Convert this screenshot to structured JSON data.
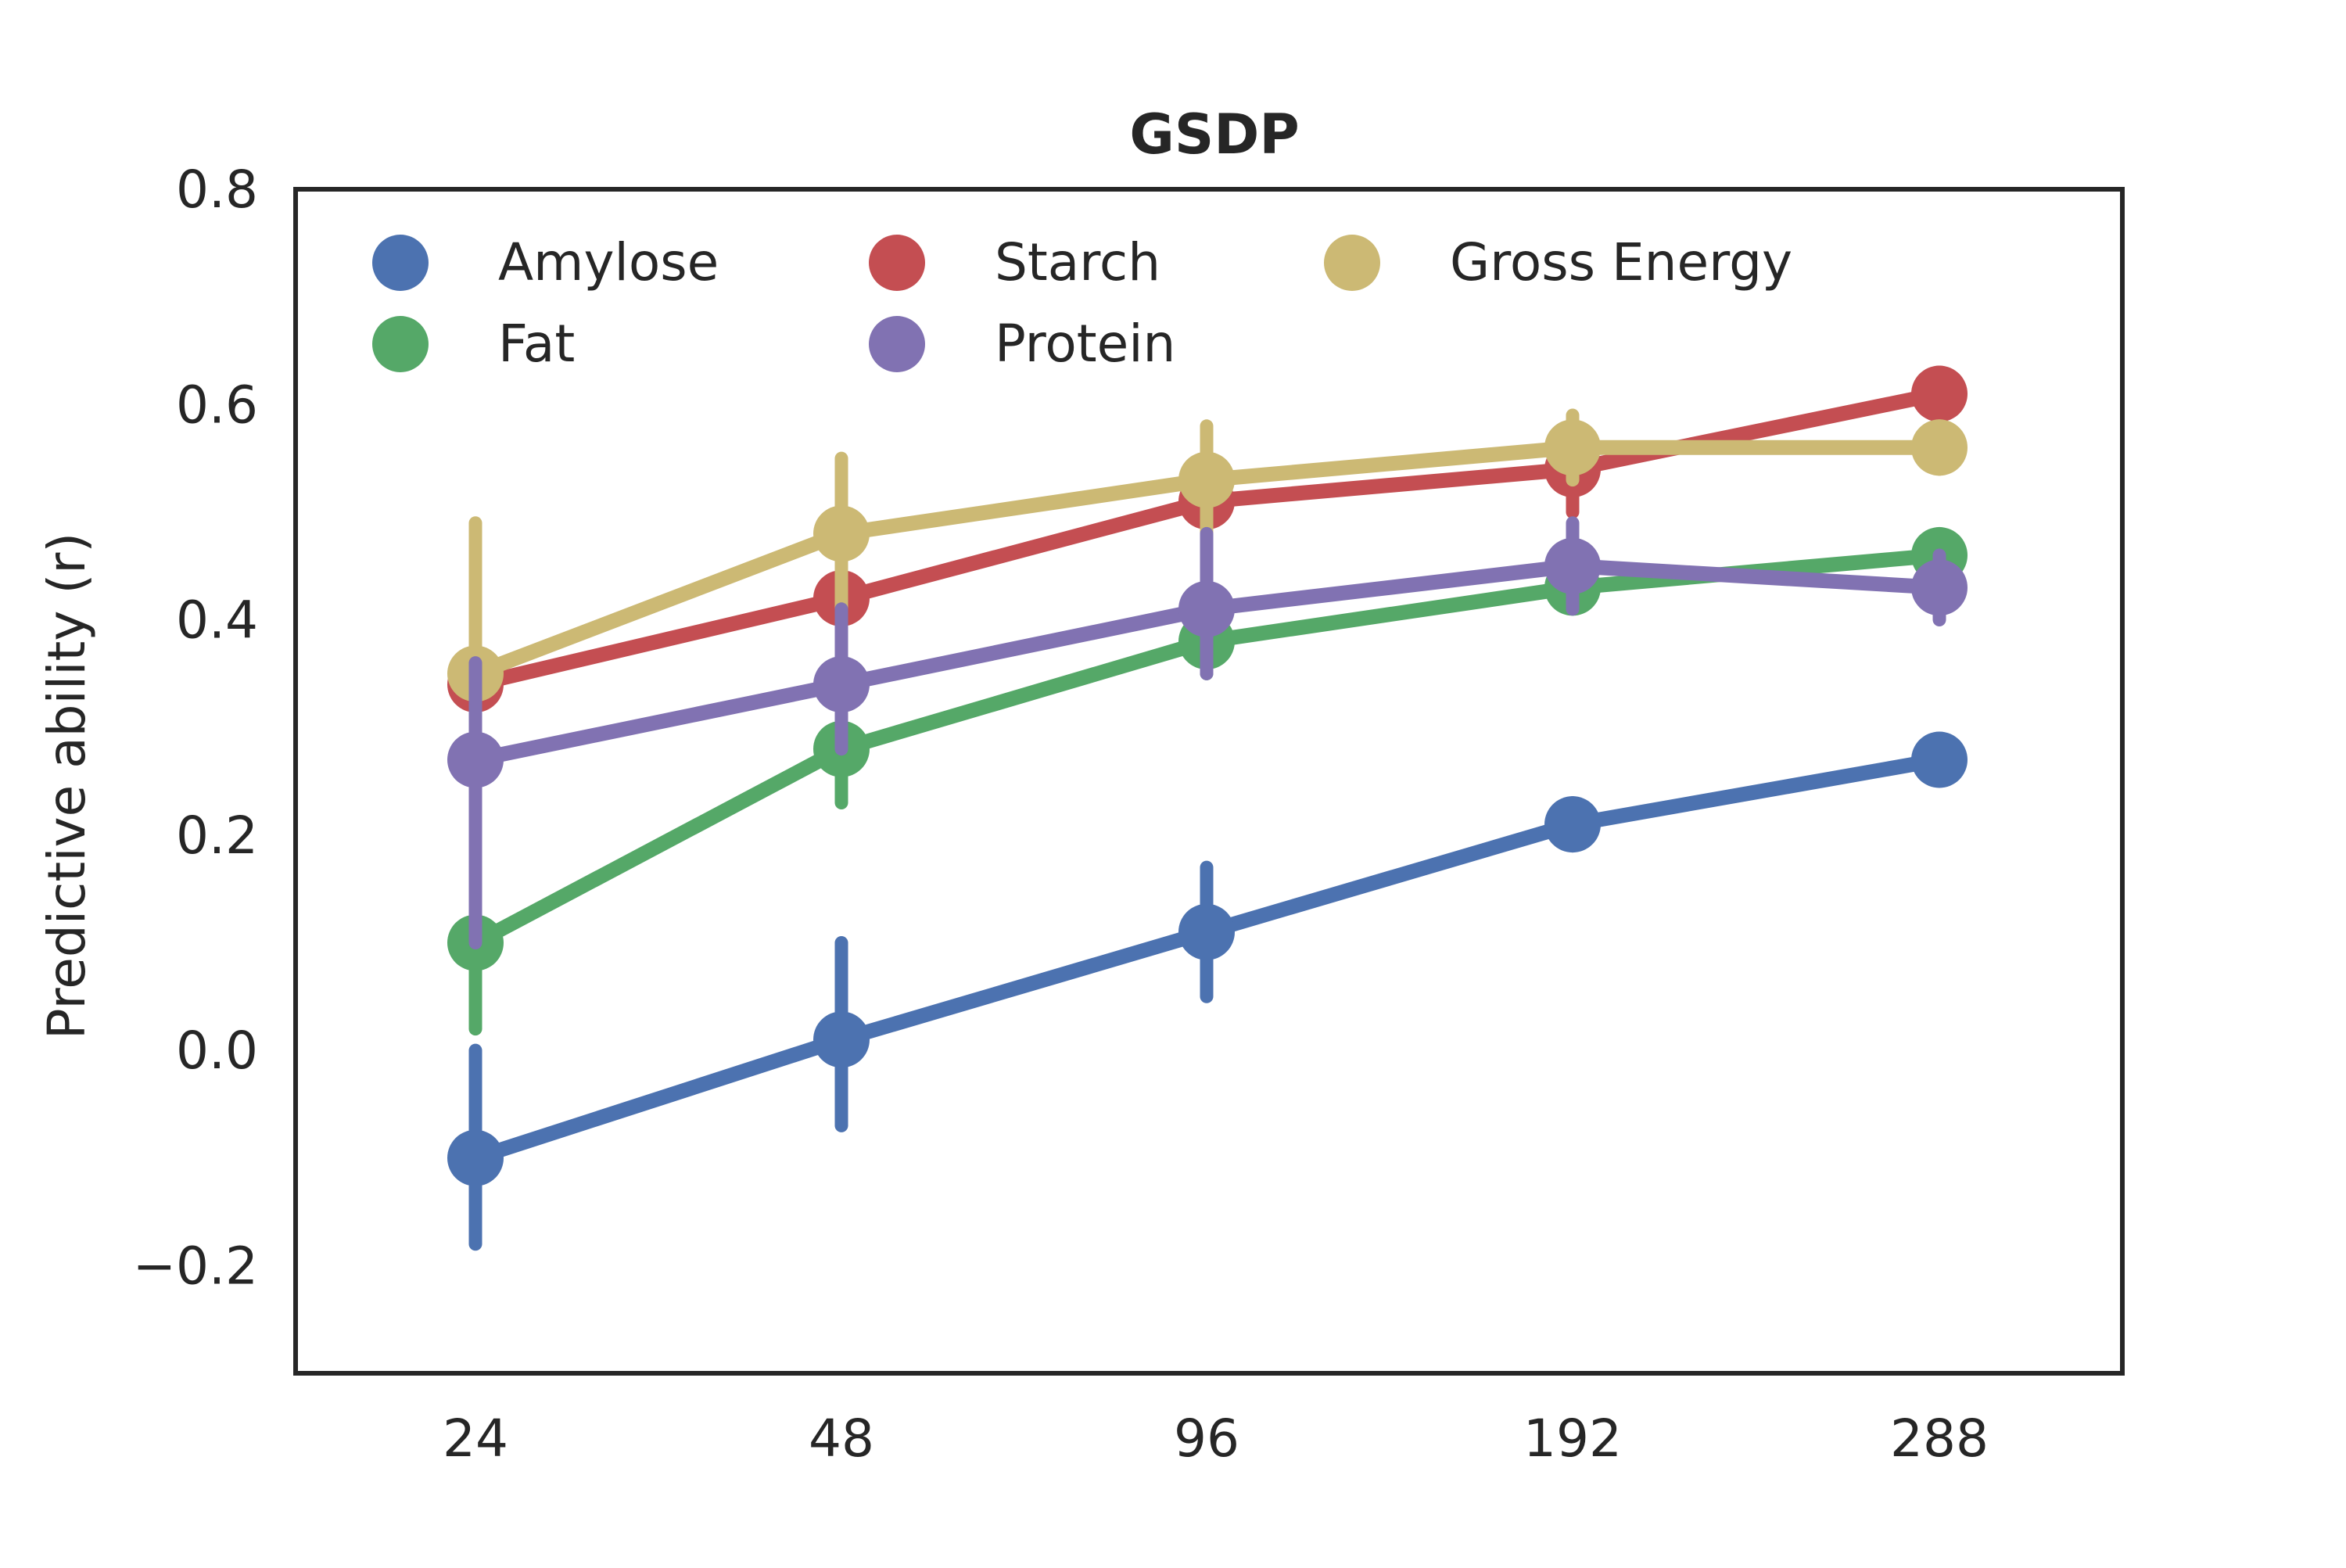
{
  "chart_data": {
    "type": "line",
    "title": "GSDP",
    "xlabel": "",
    "ylabel": "Predictive ability (r)",
    "categories": [
      "24",
      "48",
      "96",
      "192",
      "288"
    ],
    "ylim": [
      -0.3,
      0.8
    ],
    "yticks": [
      -0.2,
      0.0,
      0.2,
      0.4,
      0.6,
      0.8
    ],
    "ytick_labels": [
      "−0.2",
      "0.0",
      "0.2",
      "0.4",
      "0.6",
      "0.8"
    ],
    "grid": false,
    "legend_position": "top-left",
    "legend_columns": 3,
    "series": [
      {
        "name": "Amylose",
        "color": "#4c72b0",
        "values": [
          -0.1,
          0.01,
          0.11,
          0.21,
          0.27
        ],
        "error_low": [
          -0.18,
          -0.07,
          0.05,
          0.19,
          0.26
        ],
        "error_high": [
          0.0,
          0.1,
          0.17,
          0.23,
          0.28
        ]
      },
      {
        "name": "Starch",
        "color": "#c44e52",
        "values": [
          0.34,
          0.42,
          0.51,
          0.54,
          0.61
        ],
        "error_low": [
          0.3,
          0.4,
          0.48,
          0.5,
          0.59
        ],
        "error_high": [
          0.37,
          0.45,
          0.53,
          0.58,
          0.63
        ]
      },
      {
        "name": "Gross Energy",
        "color": "#ccb974",
        "values": [
          0.35,
          0.48,
          0.53,
          0.56,
          0.56
        ],
        "error_low": [
          0.2,
          0.41,
          0.48,
          0.53,
          0.54
        ],
        "error_high": [
          0.49,
          0.55,
          0.58,
          0.59,
          0.58
        ]
      },
      {
        "name": "Fat",
        "color": "#55a868",
        "values": [
          0.1,
          0.28,
          0.38,
          0.43,
          0.46
        ],
        "error_low": [
          0.02,
          0.23,
          0.35,
          0.41,
          0.44
        ],
        "error_high": [
          0.18,
          0.32,
          0.41,
          0.45,
          0.48
        ]
      },
      {
        "name": "Protein",
        "color": "#8172b2",
        "values": [
          0.27,
          0.34,
          0.41,
          0.45,
          0.43
        ],
        "error_low": [
          0.1,
          0.28,
          0.35,
          0.41,
          0.4
        ],
        "error_high": [
          0.36,
          0.41,
          0.48,
          0.49,
          0.46
        ]
      }
    ]
  }
}
